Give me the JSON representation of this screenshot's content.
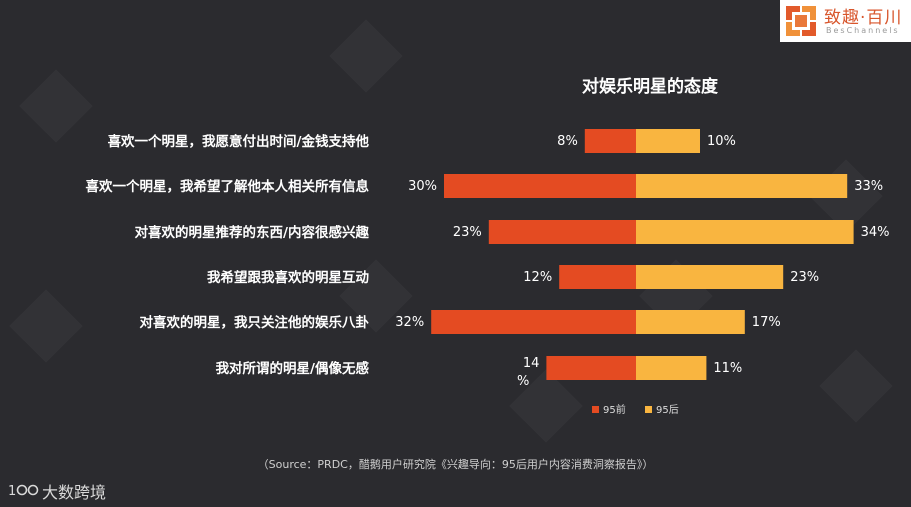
{
  "logo": {
    "name": "致趣·百川",
    "sub": "BesChannels"
  },
  "source_note": "（Source：PRDC，醋鹅用户研究院《兴趣导向：95后用户内容消费洞察报告》）",
  "brand": {
    "name": "大数跨境",
    "icon": "bigdata-logo-icon"
  },
  "chart_data": {
    "type": "bar",
    "orientation": "horizontal-diverging",
    "title": "对娱乐明星的态度",
    "categories": [
      "喜欢一个明星，我愿意付出时间/金钱支持他",
      "喜欢一个明星，我希望了解他本人相关所有信息",
      "对喜欢的明星推荐的东西/内容很感兴趣",
      "我希望跟我喜欢的明星互动",
      "对喜欢的明星，我只关注他的娱乐八卦",
      "我对所谓的明星/偶像无感"
    ],
    "series": [
      {
        "name": "95前",
        "values": [
          8,
          30,
          23,
          12,
          32,
          14
        ],
        "labels": [
          "8%",
          "30%",
          "23%",
          "12%",
          "32%",
          "14\n%"
        ],
        "color": "#e44b22"
      },
      {
        "name": "95后",
        "values": [
          10,
          33,
          34,
          23,
          17,
          11
        ],
        "labels": [
          "10%",
          "33%",
          "34%",
          "23%",
          "17%",
          "11%"
        ],
        "color": "#f9b540"
      }
    ],
    "legend_position": "bottom",
    "grid": false
  }
}
